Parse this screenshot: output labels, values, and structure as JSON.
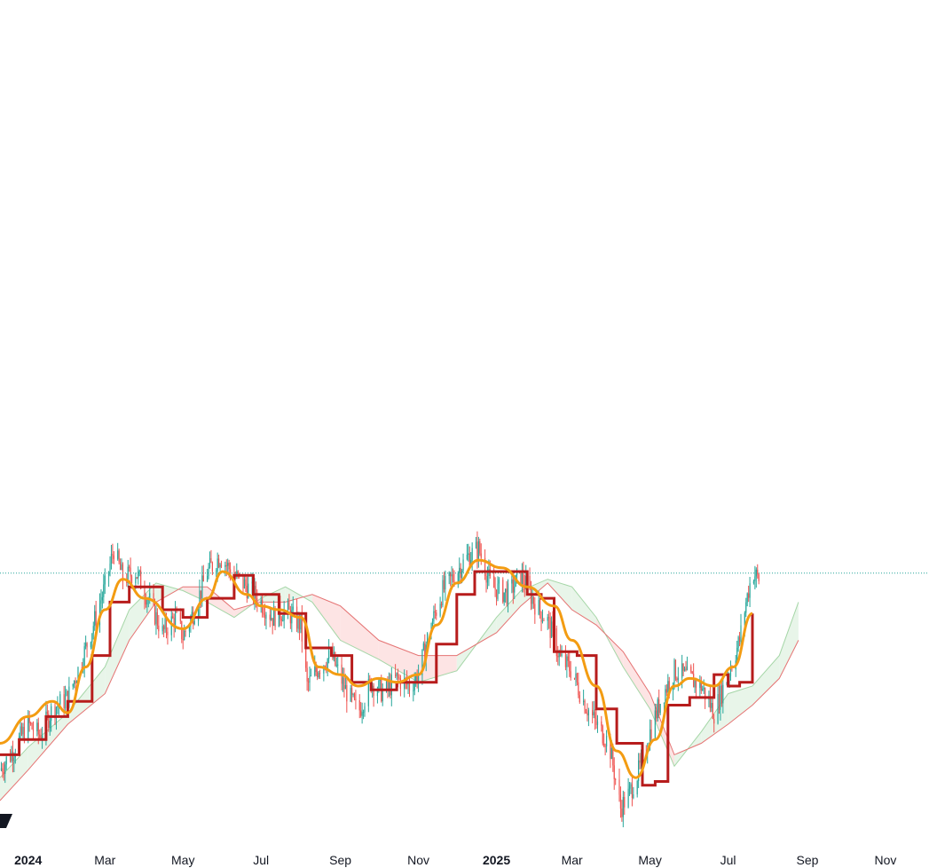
{
  "chart_data": {
    "type": "line",
    "title": "",
    "xlabel": "",
    "ylabel": "",
    "x_tick_labels": [
      {
        "label": "2024",
        "date": "2024-01-01",
        "bold": true
      },
      {
        "label": "Mar",
        "date": "2024-03-01",
        "bold": false
      },
      {
        "label": "May",
        "date": "2024-05-01",
        "bold": false
      },
      {
        "label": "Jul",
        "date": "2024-07-01",
        "bold": false
      },
      {
        "label": "Sep",
        "date": "2024-09-01",
        "bold": false
      },
      {
        "label": "Nov",
        "date": "2024-11-01",
        "bold": false
      },
      {
        "label": "2025",
        "date": "2025-01-01",
        "bold": true
      },
      {
        "label": "Mar",
        "date": "2025-03-01",
        "bold": false
      },
      {
        "label": "May",
        "date": "2025-05-01",
        "bold": false
      },
      {
        "label": "Jul",
        "date": "2025-07-01",
        "bold": false
      },
      {
        "label": "Sep",
        "date": "2025-09-01",
        "bold": false
      },
      {
        "label": "Nov",
        "date": "2025-11-01",
        "bold": false
      }
    ],
    "xlim": [
      "2023-12-10",
      "2025-12-05"
    ],
    "ylim": [
      0,
      100
    ],
    "grid": false,
    "legend": "none",
    "colors": {
      "bull_candle": "#26a69a",
      "bear_candle": "#ef5350",
      "conversion_line": "#f39c12",
      "base_line": "#b71c1c",
      "cloud_bull_fill": "#e8f5e9",
      "cloud_bull_edge": "#a5d6a7",
      "cloud_bear_fill": "#fde4e4",
      "cloud_bear_edge": "#e57373",
      "price_line": "#26a69a"
    },
    "price_line_level": 69.6,
    "candles_close_path": [
      [
        "2023-12-10",
        18
      ],
      [
        "2023-12-20",
        23
      ],
      [
        "2024-01-01",
        30
      ],
      [
        "2024-01-10",
        27
      ],
      [
        "2024-01-20",
        34
      ],
      [
        "2024-02-01",
        37
      ],
      [
        "2024-02-10",
        45
      ],
      [
        "2024-02-20",
        55
      ],
      [
        "2024-03-01",
        66
      ],
      [
        "2024-03-08",
        76
      ],
      [
        "2024-03-15",
        68
      ],
      [
        "2024-03-25",
        70
      ],
      [
        "2024-04-05",
        62
      ],
      [
        "2024-04-15",
        54
      ],
      [
        "2024-04-25",
        58
      ],
      [
        "2024-05-01",
        53
      ],
      [
        "2024-05-10",
        60
      ],
      [
        "2024-05-20",
        70
      ],
      [
        "2024-05-30",
        74
      ],
      [
        "2024-06-10",
        69
      ],
      [
        "2024-06-20",
        66
      ],
      [
        "2024-07-01",
        62
      ],
      [
        "2024-07-10",
        58
      ],
      [
        "2024-07-20",
        60
      ],
      [
        "2024-08-01",
        56
      ],
      [
        "2024-08-06",
        40
      ],
      [
        "2024-08-15",
        45
      ],
      [
        "2024-08-25",
        48
      ],
      [
        "2024-09-05",
        39
      ],
      [
        "2024-09-15",
        33
      ],
      [
        "2024-09-25",
        41
      ],
      [
        "2024-10-05",
        38
      ],
      [
        "2024-10-15",
        42
      ],
      [
        "2024-10-25",
        40
      ],
      [
        "2024-11-01",
        43
      ],
      [
        "2024-11-10",
        55
      ],
      [
        "2024-11-20",
        65
      ],
      [
        "2024-12-01",
        70
      ],
      [
        "2024-12-10",
        74
      ],
      [
        "2024-12-18",
        76
      ],
      [
        "2024-12-28",
        66
      ],
      [
        "2025-01-10",
        64
      ],
      [
        "2025-01-20",
        69
      ],
      [
        "2025-02-01",
        61
      ],
      [
        "2025-02-10",
        57
      ],
      [
        "2025-02-20",
        47
      ],
      [
        "2025-03-01",
        44
      ],
      [
        "2025-03-10",
        36
      ],
      [
        "2025-03-20",
        30
      ],
      [
        "2025-03-30",
        25
      ],
      [
        "2025-04-08",
        8
      ],
      [
        "2025-04-15",
        12
      ],
      [
        "2025-04-25",
        20
      ],
      [
        "2025-05-01",
        28
      ],
      [
        "2025-05-10",
        37
      ],
      [
        "2025-05-20",
        44
      ],
      [
        "2025-06-01",
        42
      ],
      [
        "2025-06-10",
        40
      ],
      [
        "2025-06-20",
        33
      ],
      [
        "2025-07-01",
        43
      ],
      [
        "2025-07-10",
        52
      ],
      [
        "2025-07-15",
        62
      ],
      [
        "2025-07-20",
        70
      ],
      [
        "2025-07-25",
        68
      ]
    ],
    "conversion_line": [
      [
        "2023-12-10",
        25
      ],
      [
        "2024-01-01",
        32
      ],
      [
        "2024-01-20",
        36
      ],
      [
        "2024-02-01",
        33
      ],
      [
        "2024-02-15",
        45
      ],
      [
        "2024-03-01",
        60
      ],
      [
        "2024-03-15",
        68
      ],
      [
        "2024-04-01",
        63
      ],
      [
        "2024-05-01",
        55
      ],
      [
        "2024-05-20",
        63
      ],
      [
        "2024-06-01",
        70
      ],
      [
        "2024-06-20",
        64
      ],
      [
        "2024-07-01",
        61
      ],
      [
        "2024-07-15",
        60
      ],
      [
        "2024-08-01",
        58
      ],
      [
        "2024-08-15",
        45
      ],
      [
        "2024-09-01",
        43
      ],
      [
        "2024-09-15",
        40
      ],
      [
        "2024-10-01",
        42
      ],
      [
        "2024-10-15",
        41
      ],
      [
        "2024-11-01",
        43
      ],
      [
        "2024-11-15",
        56
      ],
      [
        "2024-12-01",
        67
      ],
      [
        "2024-12-18",
        73
      ],
      [
        "2025-01-05",
        71
      ],
      [
        "2025-01-25",
        66
      ],
      [
        "2025-02-15",
        61
      ],
      [
        "2025-03-01",
        52
      ],
      [
        "2025-03-20",
        40
      ],
      [
        "2025-04-05",
        23
      ],
      [
        "2025-04-20",
        16
      ],
      [
        "2025-05-05",
        26
      ],
      [
        "2025-05-20",
        40
      ],
      [
        "2025-06-01",
        42
      ],
      [
        "2025-06-20",
        40
      ],
      [
        "2025-07-05",
        45
      ],
      [
        "2025-07-20",
        59
      ]
    ],
    "base_line": [
      [
        "2023-12-10",
        22
      ],
      [
        "2023-12-25",
        26
      ],
      [
        "2024-01-15",
        32
      ],
      [
        "2024-02-01",
        36
      ],
      [
        "2024-02-20",
        48
      ],
      [
        "2024-03-05",
        62
      ],
      [
        "2024-03-20",
        66
      ],
      [
        "2024-04-15",
        60
      ],
      [
        "2024-05-01",
        58
      ],
      [
        "2024-05-20",
        63
      ],
      [
        "2024-06-10",
        69
      ],
      [
        "2024-06-25",
        64
      ],
      [
        "2024-07-15",
        59
      ],
      [
        "2024-08-05",
        50
      ],
      [
        "2024-08-25",
        48
      ],
      [
        "2024-09-10",
        41
      ],
      [
        "2024-09-25",
        39
      ],
      [
        "2024-10-15",
        41
      ],
      [
        "2024-11-01",
        41
      ],
      [
        "2024-11-15",
        51
      ],
      [
        "2024-12-01",
        64
      ],
      [
        "2024-12-15",
        70
      ],
      [
        "2025-01-05",
        70
      ],
      [
        "2025-01-25",
        64
      ],
      [
        "2025-02-05",
        63
      ],
      [
        "2025-02-15",
        49
      ],
      [
        "2025-03-05",
        48
      ],
      [
        "2025-03-20",
        34
      ],
      [
        "2025-04-05",
        25
      ],
      [
        "2025-04-25",
        14
      ],
      [
        "2025-05-05",
        15
      ],
      [
        "2025-05-15",
        35
      ],
      [
        "2025-06-01",
        37
      ],
      [
        "2025-06-20",
        43
      ],
      [
        "2025-07-01",
        40
      ],
      [
        "2025-07-10",
        41
      ],
      [
        "2025-07-20",
        59
      ]
    ],
    "cloud_span_a": [
      [
        "2023-12-10",
        16
      ],
      [
        "2024-01-01",
        24
      ],
      [
        "2024-02-01",
        33
      ],
      [
        "2024-03-01",
        45
      ],
      [
        "2024-03-20",
        60
      ],
      [
        "2024-04-10",
        67
      ],
      [
        "2024-05-01",
        65
      ],
      [
        "2024-05-20",
        62
      ],
      [
        "2024-06-10",
        58
      ],
      [
        "2024-07-01",
        63
      ],
      [
        "2024-07-20",
        66
      ],
      [
        "2024-08-10",
        62
      ],
      [
        "2024-09-01",
        52
      ],
      [
        "2024-10-01",
        47
      ],
      [
        "2024-11-01",
        41
      ],
      [
        "2024-12-01",
        44
      ],
      [
        "2025-01-01",
        58
      ],
      [
        "2025-01-20",
        65
      ],
      [
        "2025-02-10",
        68
      ],
      [
        "2025-03-01",
        66
      ],
      [
        "2025-03-20",
        58
      ],
      [
        "2025-04-10",
        45
      ],
      [
        "2025-05-01",
        34
      ],
      [
        "2025-05-20",
        19
      ],
      [
        "2025-06-10",
        28
      ],
      [
        "2025-07-01",
        38
      ],
      [
        "2025-07-20",
        40
      ],
      [
        "2025-08-10",
        48
      ],
      [
        "2025-08-25",
        62
      ]
    ],
    "cloud_span_b": [
      [
        "2023-12-10",
        10
      ],
      [
        "2024-01-01",
        18
      ],
      [
        "2024-02-01",
        30
      ],
      [
        "2024-03-01",
        38
      ],
      [
        "2024-03-20",
        52
      ],
      [
        "2024-04-10",
        62
      ],
      [
        "2024-05-01",
        66
      ],
      [
        "2024-05-20",
        66
      ],
      [
        "2024-06-10",
        60
      ],
      [
        "2024-07-01",
        62
      ],
      [
        "2024-07-20",
        62
      ],
      [
        "2024-08-10",
        64
      ],
      [
        "2024-09-01",
        61
      ],
      [
        "2024-10-01",
        52
      ],
      [
        "2024-11-01",
        48
      ],
      [
        "2024-12-01",
        48
      ],
      [
        "2025-01-01",
        54
      ],
      [
        "2025-01-20",
        61
      ],
      [
        "2025-02-10",
        67
      ],
      [
        "2025-03-01",
        60
      ],
      [
        "2025-03-20",
        56
      ],
      [
        "2025-04-10",
        49
      ],
      [
        "2025-05-01",
        38
      ],
      [
        "2025-05-20",
        22
      ],
      [
        "2025-06-10",
        25
      ],
      [
        "2025-07-01",
        30
      ],
      [
        "2025-07-20",
        35
      ],
      [
        "2025-08-10",
        42
      ],
      [
        "2025-08-25",
        52
      ]
    ]
  }
}
